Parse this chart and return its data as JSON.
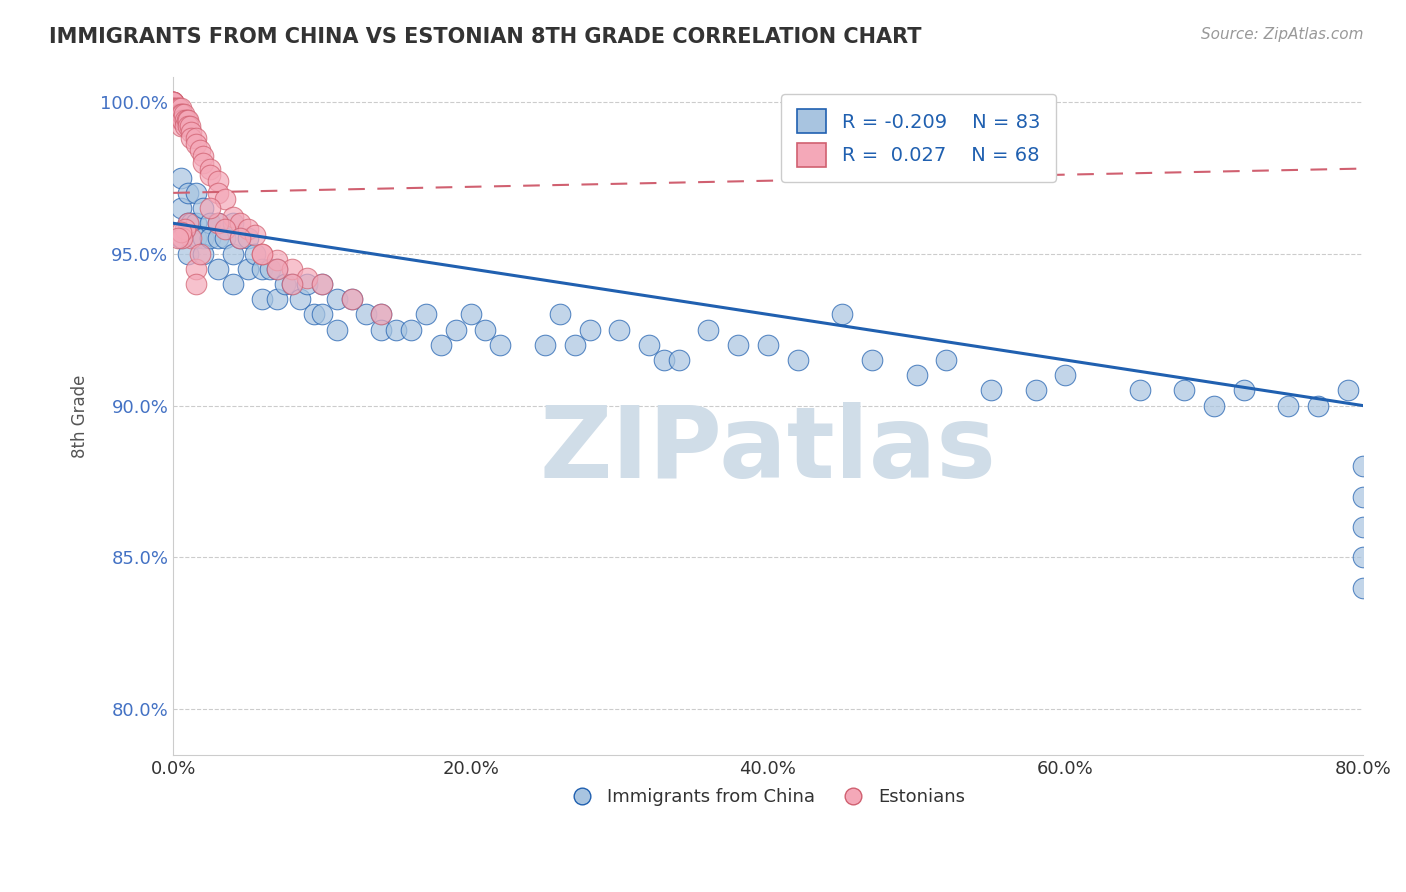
{
  "title": "IMMIGRANTS FROM CHINA VS ESTONIAN 8TH GRADE CORRELATION CHART",
  "source": "Source: ZipAtlas.com",
  "xlabel_label": "Immigrants from China",
  "ylabel_label": "8th Grade",
  "x_tick_labels": [
    "0.0%",
    "20.0%",
    "40.0%",
    "60.0%",
    "80.0%"
  ],
  "y_tick_labels": [
    "80.0%",
    "85.0%",
    "90.0%",
    "95.0%",
    "100.0%"
  ],
  "xlim": [
    0.0,
    0.8
  ],
  "ylim": [
    0.785,
    1.008
  ],
  "R_blue": -0.209,
  "N_blue": 83,
  "R_pink": 0.027,
  "N_pink": 68,
  "blue_color": "#a8c4e0",
  "pink_color": "#f4a8b8",
  "blue_line_color": "#2060b0",
  "pink_line_color": "#d06070",
  "legend_box_blue": "#a8c4e0",
  "legend_box_pink": "#f4a8b8",
  "watermark": "ZIPatlas",
  "watermark_color": "#d0dde8",
  "grid_color": "#cccccc",
  "background_color": "#ffffff",
  "blue_scatter_x": [
    0.005,
    0.005,
    0.005,
    0.01,
    0.01,
    0.01,
    0.012,
    0.015,
    0.015,
    0.015,
    0.02,
    0.02,
    0.02,
    0.025,
    0.025,
    0.03,
    0.03,
    0.03,
    0.035,
    0.04,
    0.04,
    0.04,
    0.045,
    0.05,
    0.05,
    0.055,
    0.06,
    0.06,
    0.065,
    0.07,
    0.07,
    0.075,
    0.08,
    0.085,
    0.09,
    0.095,
    0.1,
    0.1,
    0.11,
    0.11,
    0.12,
    0.13,
    0.14,
    0.14,
    0.15,
    0.16,
    0.17,
    0.18,
    0.19,
    0.2,
    0.21,
    0.22,
    0.25,
    0.26,
    0.27,
    0.28,
    0.3,
    0.32,
    0.33,
    0.34,
    0.36,
    0.38,
    0.4,
    0.42,
    0.45,
    0.47,
    0.5,
    0.52,
    0.55,
    0.58,
    0.6,
    0.65,
    0.68,
    0.7,
    0.72,
    0.75,
    0.77,
    0.79,
    0.8,
    0.8,
    0.8,
    0.8,
    0.8
  ],
  "blue_scatter_y": [
    0.975,
    0.965,
    0.955,
    0.97,
    0.96,
    0.95,
    0.96,
    0.97,
    0.96,
    0.955,
    0.965,
    0.955,
    0.95,
    0.96,
    0.955,
    0.96,
    0.955,
    0.945,
    0.955,
    0.96,
    0.95,
    0.94,
    0.955,
    0.955,
    0.945,
    0.95,
    0.945,
    0.935,
    0.945,
    0.945,
    0.935,
    0.94,
    0.94,
    0.935,
    0.94,
    0.93,
    0.94,
    0.93,
    0.935,
    0.925,
    0.935,
    0.93,
    0.93,
    0.925,
    0.925,
    0.925,
    0.93,
    0.92,
    0.925,
    0.93,
    0.925,
    0.92,
    0.92,
    0.93,
    0.92,
    0.925,
    0.925,
    0.92,
    0.915,
    0.915,
    0.925,
    0.92,
    0.92,
    0.915,
    0.93,
    0.915,
    0.91,
    0.915,
    0.905,
    0.905,
    0.91,
    0.905,
    0.905,
    0.9,
    0.905,
    0.9,
    0.9,
    0.905,
    0.88,
    0.87,
    0.86,
    0.85,
    0.84
  ],
  "pink_scatter_x": [
    0.0,
    0.0,
    0.0,
    0.0,
    0.0,
    0.0,
    0.0,
    0.0,
    0.0,
    0.0,
    0.002,
    0.002,
    0.003,
    0.003,
    0.004,
    0.004,
    0.005,
    0.005,
    0.005,
    0.005,
    0.006,
    0.006,
    0.007,
    0.008,
    0.008,
    0.009,
    0.01,
    0.01,
    0.011,
    0.012,
    0.012,
    0.015,
    0.015,
    0.018,
    0.02,
    0.02,
    0.025,
    0.025,
    0.03,
    0.03,
    0.035,
    0.04,
    0.045,
    0.05,
    0.055,
    0.06,
    0.07,
    0.08,
    0.09,
    0.1,
    0.12,
    0.14,
    0.015,
    0.015,
    0.03,
    0.035,
    0.045,
    0.06,
    0.07,
    0.08,
    0.012,
    0.018,
    0.025,
    0.01,
    0.008,
    0.006,
    0.005,
    0.003
  ],
  "pink_scatter_y": [
    1.0,
    1.0,
    1.0,
    1.0,
    1.0,
    1.0,
    0.998,
    0.998,
    0.996,
    0.995,
    0.998,
    0.996,
    0.998,
    0.996,
    0.998,
    0.996,
    0.998,
    0.996,
    0.994,
    0.992,
    0.996,
    0.994,
    0.996,
    0.994,
    0.992,
    0.994,
    0.994,
    0.992,
    0.992,
    0.99,
    0.988,
    0.988,
    0.986,
    0.984,
    0.982,
    0.98,
    0.978,
    0.976,
    0.974,
    0.97,
    0.968,
    0.962,
    0.96,
    0.958,
    0.956,
    0.95,
    0.948,
    0.945,
    0.942,
    0.94,
    0.935,
    0.93,
    0.945,
    0.94,
    0.96,
    0.958,
    0.955,
    0.95,
    0.945,
    0.94,
    0.955,
    0.95,
    0.965,
    0.96,
    0.958,
    0.955,
    0.957,
    0.955
  ],
  "blue_trend_x0": 0.0,
  "blue_trend_y0": 0.96,
  "blue_trend_x1": 0.8,
  "blue_trend_y1": 0.9,
  "pink_trend_x0": 0.0,
  "pink_trend_y0": 0.97,
  "pink_trend_x1": 0.8,
  "pink_trend_y1": 0.978
}
